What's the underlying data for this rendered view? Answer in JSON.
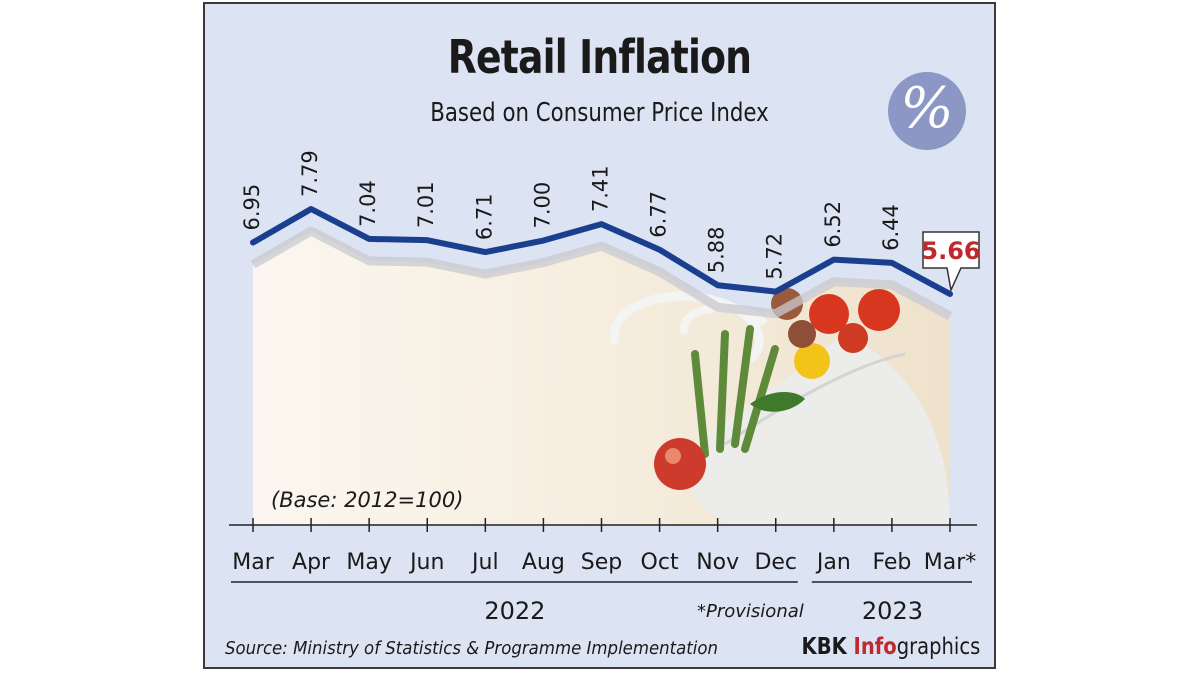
{
  "chart_data": {
    "type": "line",
    "title": "Retail Inflation",
    "subtitle": "Based on Consumer Price Index",
    "categories": [
      "Mar",
      "Apr",
      "May",
      "Jun",
      "Jul",
      "Aug",
      "Sep",
      "Oct",
      "Nov",
      "Dec",
      "Jan",
      "Feb",
      "Mar*"
    ],
    "values": [
      6.95,
      7.79,
      7.04,
      7.01,
      6.71,
      7.0,
      7.41,
      6.77,
      5.88,
      5.72,
      6.52,
      6.44,
      5.66
    ],
    "value_labels": [
      "6.95",
      "7.79",
      "7.04",
      "7.01",
      "6.71",
      "7.00",
      "7.41",
      "6.77",
      "5.88",
      "5.72",
      "6.52",
      "6.44",
      "5.66"
    ],
    "highlight_label": "5.66",
    "years": [
      {
        "label": "2022",
        "first_index": 0,
        "last_index": 9
      },
      {
        "label": "2023",
        "first_index": 10,
        "last_index": 12
      }
    ],
    "annotations": {
      "base": "(Base: 2012=100)",
      "provisional": "*Provisional"
    },
    "grid": false,
    "colors": {
      "line": "#1b3f8f",
      "highlight": "#c0282d",
      "background": "#dce3f3",
      "shadow": "#c9c9cf"
    }
  },
  "footer": {
    "source": "Source: Ministry of Statistics & Programme Implementation",
    "credit_a": "KBK ",
    "credit_b": "Info",
    "credit_c": "graphics"
  },
  "icon": {
    "name": "percent-icon",
    "glyph": "%"
  }
}
